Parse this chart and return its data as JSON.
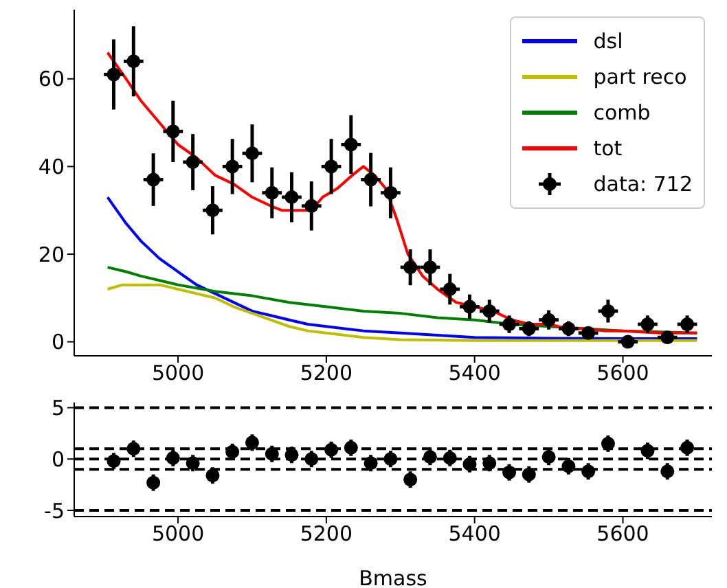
{
  "chart_data": [
    {
      "type": "line",
      "xlim": [
        4860,
        5720
      ],
      "xticks": [
        5000,
        5200,
        5400,
        5600
      ],
      "ylim": [
        -3.2,
        75.8
      ],
      "yticks": [
        0,
        20,
        40,
        60
      ],
      "grid": false,
      "legend": "top right",
      "series": [
        {
          "name": "dsl",
          "color": "#0000ff",
          "x": [
            4905,
            4930,
            4950,
            4975,
            5000,
            5025,
            5050,
            5075,
            5100,
            5125,
            5150,
            5175,
            5200,
            5250,
            5300,
            5350,
            5400,
            5500,
            5600,
            5700
          ],
          "values": [
            33,
            27,
            23,
            19,
            16,
            13,
            11,
            9,
            7,
            6,
            5,
            4,
            3.5,
            2.5,
            2,
            1.5,
            1,
            0.8,
            0.7,
            0.7
          ]
        },
        {
          "name": "part reco",
          "color": "#bfbf00",
          "x": [
            4905,
            4925,
            4950,
            4975,
            5000,
            5025,
            5050,
            5075,
            5100,
            5125,
            5150,
            5175,
            5200,
            5250,
            5300,
            5400,
            5700
          ],
          "values": [
            12,
            13,
            13,
            13,
            12,
            11,
            10,
            8,
            6.5,
            5,
            3.5,
            2.5,
            2,
            1,
            0.5,
            0.3,
            0.3
          ]
        },
        {
          "name": "comb",
          "color": "#008000",
          "x": [
            4905,
            4930,
            4950,
            4975,
            5000,
            5050,
            5100,
            5150,
            5200,
            5250,
            5300,
            5350,
            5400,
            5450,
            5500,
            5550,
            5600,
            5700
          ],
          "values": [
            17,
            16,
            15,
            14,
            13,
            11.5,
            10.5,
            9,
            8,
            7,
            6.5,
            5.5,
            5,
            4,
            3.5,
            3,
            2.5,
            2
          ]
        },
        {
          "name": "tot",
          "color": "#ff0000",
          "x": [
            4905,
            4930,
            4950,
            4970,
            5000,
            5025,
            5050,
            5075,
            5100,
            5125,
            5140,
            5160,
            5180,
            5195,
            5215,
            5235,
            5250,
            5265,
            5280,
            5295,
            5310,
            5330,
            5350,
            5375,
            5400,
            5425,
            5450,
            5475,
            5500,
            5525,
            5550,
            5575,
            5600,
            5650,
            5700
          ],
          "values": [
            66,
            60,
            55,
            51,
            45,
            42,
            38,
            36,
            33,
            31,
            30,
            30,
            30,
            33,
            35,
            38,
            40,
            38,
            35,
            28,
            20,
            15,
            12,
            9,
            8,
            7,
            5,
            4,
            4,
            3,
            3,
            2.5,
            2.5,
            2,
            2
          ]
        },
        {
          "name": "data: 712",
          "type": "scatter",
          "color": "#000000",
          "marker": "circle",
          "x": [
            4913.3,
            4940,
            4966.7,
            4993.3,
            5020,
            5046.7,
            5073.3,
            5100,
            5126.7,
            5153.3,
            5180,
            5206.7,
            5233.3,
            5260,
            5286.7,
            5313.3,
            5340,
            5366.7,
            5393.3,
            5420,
            5446.7,
            5473.3,
            5500,
            5526.7,
            5553.3,
            5580,
            5606.7,
            5633.3,
            5660,
            5686.7
          ],
          "values": [
            61,
            64,
            37,
            48,
            41,
            30,
            40,
            43,
            34,
            33,
            31,
            40,
            45,
            37,
            34,
            17,
            17,
            12,
            8,
            7,
            4,
            3,
            5,
            3,
            2,
            7,
            0,
            4,
            1,
            4
          ],
          "errors": [
            8,
            8,
            6,
            7,
            6.4,
            5.5,
            6.3,
            6.6,
            5.8,
            5.7,
            5.6,
            6.3,
            6.7,
            6.1,
            5.8,
            4.1,
            4.1,
            3.5,
            2.8,
            2.6,
            2,
            1.7,
            2.2,
            1.7,
            1.4,
            2.6,
            0,
            2,
            1,
            2
          ],
          "xerrors": [
            13.3,
            13.3,
            13.3,
            13.3,
            13.3,
            13.3,
            13.3,
            13.3,
            13.3,
            13.3,
            13.3,
            13.3,
            13.3,
            13.3,
            13.3,
            13.3,
            13.3,
            13.3,
            13.3,
            13.3,
            13.3,
            13.3,
            13.3,
            13.3,
            13.3,
            13.3,
            13.3,
            13.3,
            13.3,
            13.3
          ]
        }
      ]
    },
    {
      "type": "scatter",
      "xlabel": "Bmass",
      "xlim": [
        4860,
        5720
      ],
      "xticks": [
        5000,
        5200,
        5400,
        5600
      ],
      "ylim": [
        -5.6,
        5.5
      ],
      "yticks": [
        -5,
        0,
        5
      ],
      "grid": false,
      "marker": "circle",
      "color": "#000000",
      "x": [
        4913.3,
        4940,
        4966.7,
        4993.3,
        5020,
        5046.7,
        5073.3,
        5100,
        5126.7,
        5153.3,
        5180,
        5206.7,
        5233.3,
        5260,
        5286.7,
        5313.3,
        5340,
        5366.7,
        5393.3,
        5420,
        5446.7,
        5473.3,
        5500,
        5526.7,
        5553.3,
        5580,
        5606.7,
        5633.3,
        5660,
        5686.7
      ],
      "values": [
        -0.2,
        1.0,
        -2.3,
        0.1,
        -0.4,
        -1.6,
        0.7,
        1.6,
        0.5,
        0.4,
        0,
        0.9,
        1.1,
        -0.4,
        0,
        -2.0,
        0.2,
        0.1,
        -0.5,
        -0.4,
        -1.3,
        -1.5,
        0.2,
        -0.7,
        -1.2,
        1.5,
        null,
        0.8,
        -1.2,
        1.1
      ],
      "errors": [
        0.8,
        0.8,
        0.8,
        0.8,
        0.8,
        0.8,
        0.8,
        0.8,
        0.8,
        0.8,
        0.8,
        0.8,
        0.8,
        0.8,
        0.8,
        0.8,
        0.8,
        0.8,
        0.8,
        0.8,
        0.8,
        0.8,
        0.8,
        0.8,
        0.8,
        0.8,
        null,
        0.8,
        0.8,
        0.8
      ],
      "ref_lines": [
        {
          "axis": "y",
          "value": 5,
          "line_style": "dashed",
          "color": "#000000"
        },
        {
          "axis": "y",
          "value": 1,
          "line_style": "dashed",
          "color": "#000000"
        },
        {
          "axis": "y",
          "value": 0,
          "line_style": "dashed",
          "color": "#000000"
        },
        {
          "axis": "y",
          "value": -1,
          "line_style": "dashed",
          "color": "#000000"
        },
        {
          "axis": "y",
          "value": -5,
          "line_style": "dashed",
          "color": "#000000"
        }
      ]
    }
  ]
}
